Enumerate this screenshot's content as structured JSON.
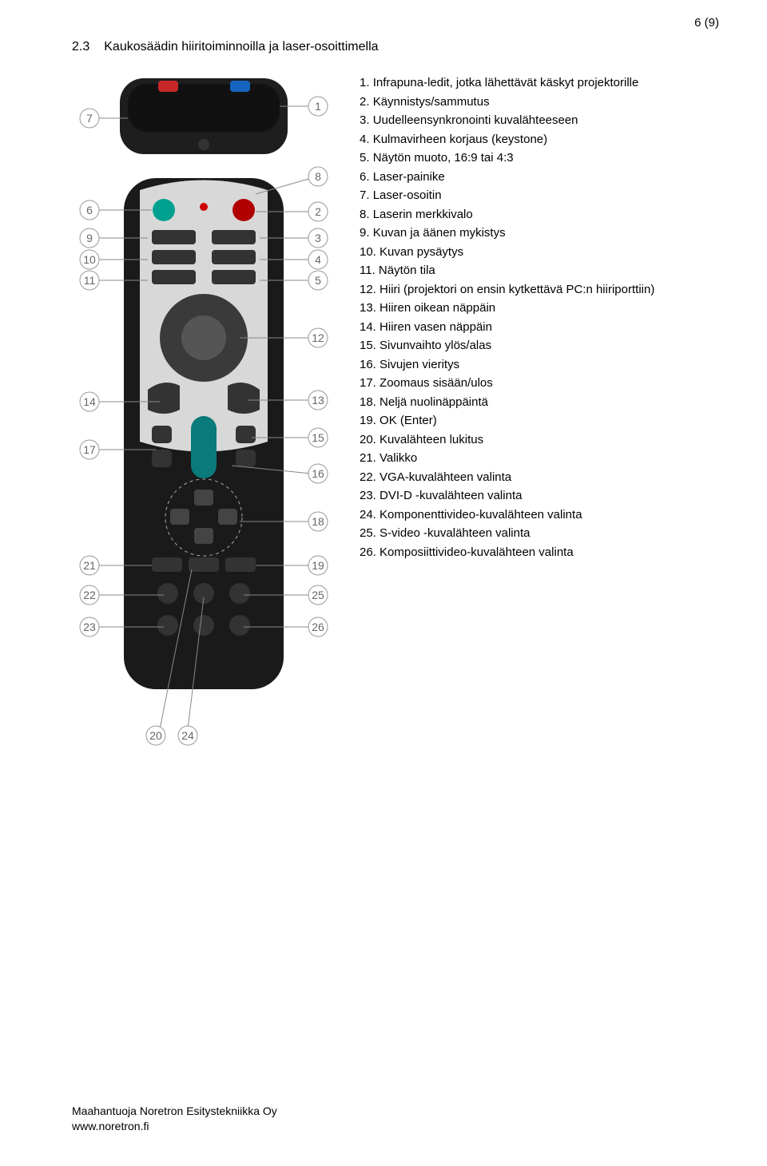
{
  "page_number": "6 (9)",
  "section": {
    "number": "2.3",
    "title": "Kaukosäädin hiiritoiminnoilla ja laser-osoittimella"
  },
  "list_items": [
    {
      "n": "1.",
      "text": "Infrapuna-ledit, jotka lähettävät käskyt projektorille"
    },
    {
      "n": "2.",
      "text": "Käynnistys/sammutus"
    },
    {
      "n": "3.",
      "text": "Uudelleensynkronointi kuvalähteeseen"
    },
    {
      "n": "4.",
      "text": "Kulmavirheen korjaus (keystone)"
    },
    {
      "n": "5.",
      "text": "Näytön muoto, 16:9 tai 4:3"
    },
    {
      "n": "6.",
      "text": "Laser-painike"
    },
    {
      "n": "7.",
      "text": "Laser-osoitin"
    },
    {
      "n": "8.",
      "text": "Laserin merkkivalo"
    },
    {
      "n": "9.",
      "text": "Kuvan ja äänen mykistys"
    },
    {
      "n": "10.",
      "text": "Kuvan pysäytys"
    },
    {
      "n": "11.",
      "text": "Näytön tila"
    },
    {
      "n": "12.",
      "text": "Hiiri (projektori on ensin kytkettävä PC:n hiiriporttiin)"
    },
    {
      "n": "13.",
      "text": "Hiiren oikean näppäin"
    },
    {
      "n": "14.",
      "text": "Hiiren vasen näppäin"
    },
    {
      "n": "15.",
      "text": "Sivunvaihto ylös/alas"
    },
    {
      "n": "16.",
      "text": "Sivujen vieritys"
    },
    {
      "n": "17.",
      "text": "Zoomaus sisään/ulos"
    },
    {
      "n": "18.",
      "text": "Neljä nuolinäppäintä"
    },
    {
      "n": "19.",
      "text": "OK (Enter)"
    },
    {
      "n": "20.",
      "text": "Kuvalähteen lukitus"
    },
    {
      "n": "21.",
      "text": "Valikko"
    },
    {
      "n": "22.",
      "text": "VGA-kuvalähteen valinta"
    },
    {
      "n": "23.",
      "text": "DVI-D -kuvalähteen valinta"
    },
    {
      "n": "24.",
      "text": "Komponenttivideo-kuvalähteen valinta"
    },
    {
      "n": "25.",
      "text": "S-video -kuvalähteen valinta"
    },
    {
      "n": "26.",
      "text": "Komposiittivideo-kuvalähteen valinta"
    }
  ],
  "footer": {
    "line1": "Maahantuoja Noretron Esitystekniikka Oy",
    "line2": "www.noretron.fi"
  },
  "diagram": {
    "callouts_left": [
      "7",
      "6",
      "9",
      "10",
      "11",
      "14",
      "17",
      "21",
      "22",
      "23"
    ],
    "callouts_right": [
      "1",
      "8",
      "2",
      "3",
      "4",
      "5",
      "12",
      "13",
      "15",
      "16",
      "18",
      "19",
      "25",
      "26"
    ],
    "callouts_bottom": [
      "20",
      "24"
    ]
  }
}
